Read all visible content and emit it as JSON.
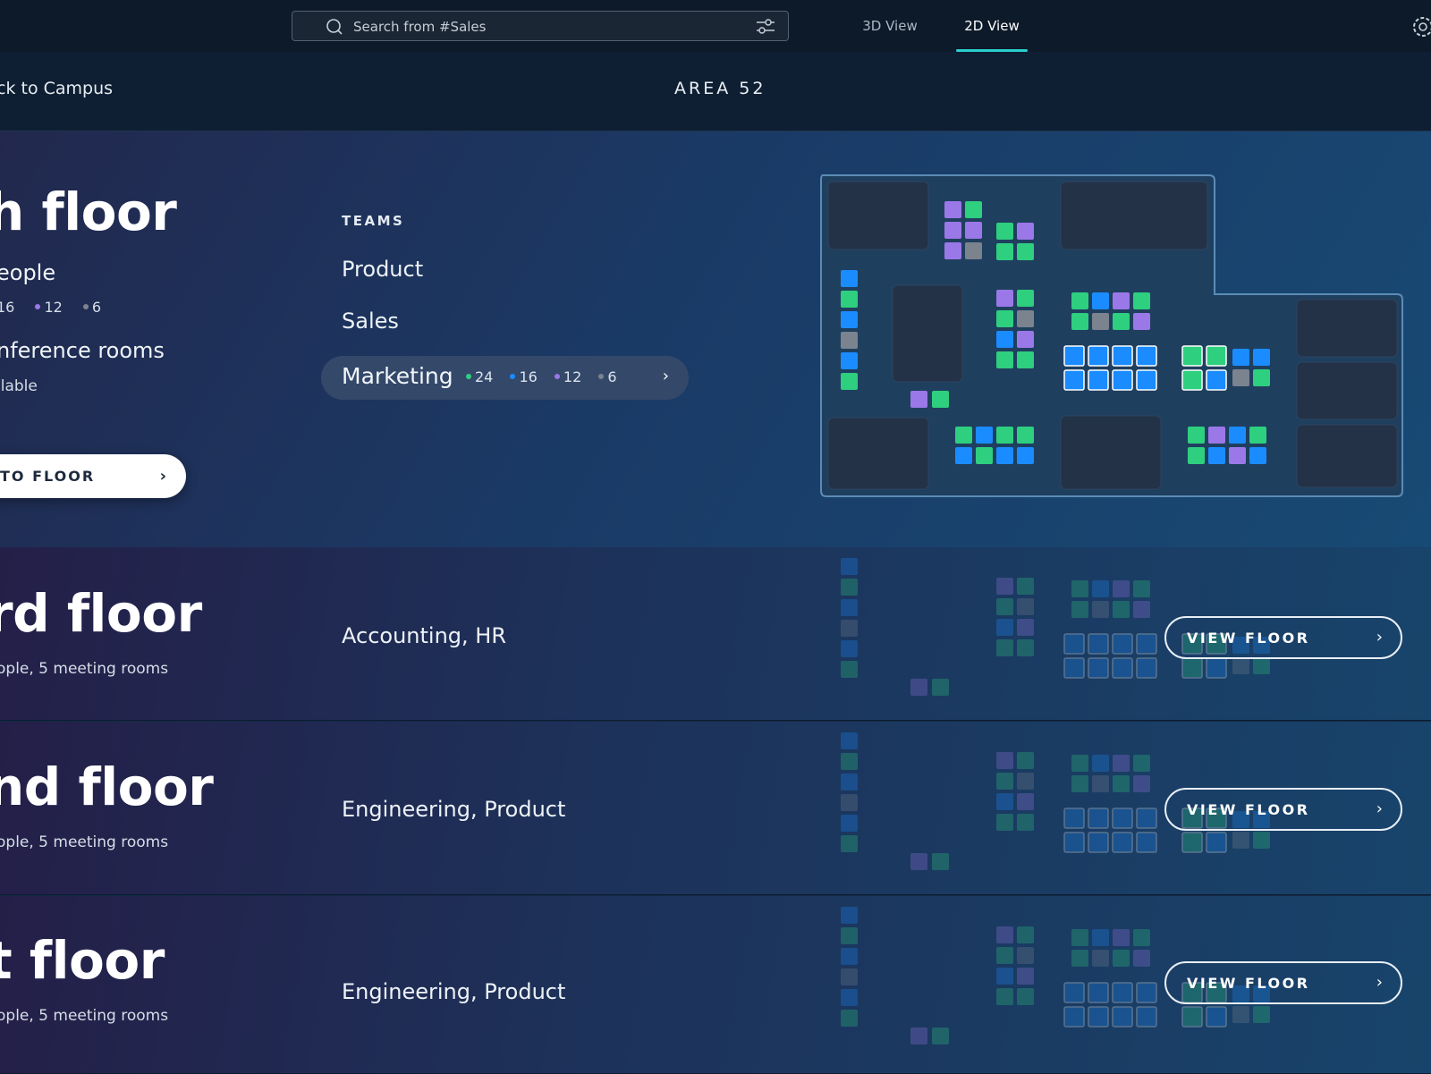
{
  "topbar": {
    "search_placeholder": "Search from #Sales",
    "view_tabs": [
      "3D View",
      "2D View"
    ],
    "active_tab": "2D View"
  },
  "subheader": {
    "back_label": "ck to Campus",
    "building": "AREA 52"
  },
  "floors": [
    {
      "title": "h floor",
      "people_label": "eople",
      "counts": [
        "16",
        "12",
        "6"
      ],
      "rooms_label": "nference rooms",
      "rooms_status": "ilable",
      "goto_label": "TO FLOOR",
      "teams_heading": "TEAMS",
      "teams": [
        "Product",
        "Sales",
        "Marketing"
      ],
      "active_team_counts": [
        "24",
        "16",
        "12",
        "6"
      ]
    },
    {
      "title": "rd floor",
      "summary": "ople, 5 meeting rooms",
      "teams": "Accounting, HR",
      "button": "VIEW FLOOR"
    },
    {
      "title": "nd floor",
      "summary": "ople, 5 meeting rooms",
      "teams": "Engineering, Product",
      "button": "VIEW FLOOR"
    },
    {
      "title": "t floor",
      "summary": "ople, 5 meeting rooms",
      "teams": "Engineering, Product",
      "button": "VIEW FLOOR"
    }
  ],
  "colors": {
    "green": "#2ecf7f",
    "blue": "#1a8cff",
    "purple": "#9a78e8",
    "gray": "#7b838f",
    "accent": "#2ad0d0"
  }
}
